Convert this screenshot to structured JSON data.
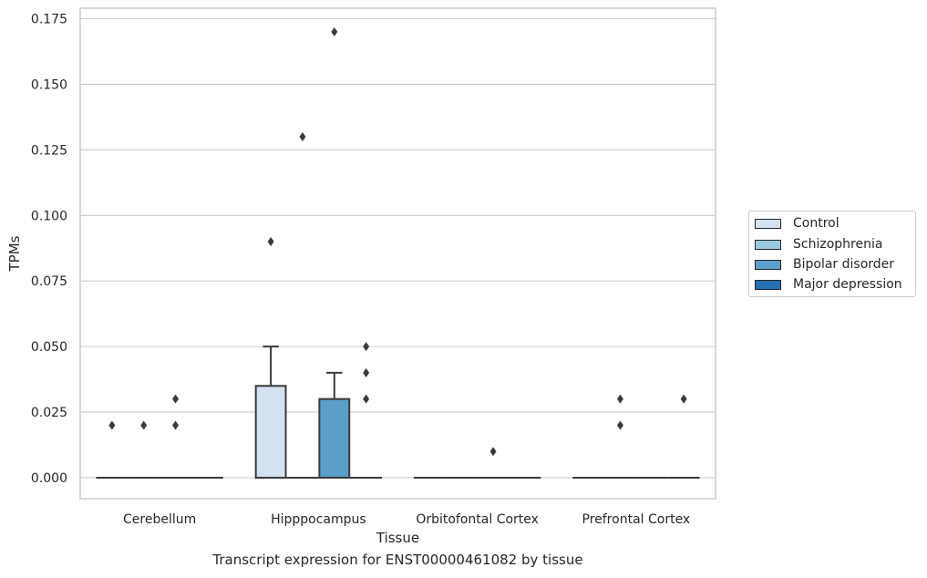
{
  "chart_data": {
    "type": "box",
    "xlabel": "Tissue",
    "ylabel": "TPMs",
    "caption": "Transcript expression for ENST00000461082 by tissue",
    "ylim": [
      -0.008,
      0.179
    ],
    "yticks": [
      "0.000",
      "0.025",
      "0.050",
      "0.075",
      "0.100",
      "0.125",
      "0.150",
      "0.175"
    ],
    "ytick_values": [
      0,
      0.025,
      0.05,
      0.075,
      0.1,
      0.125,
      0.15,
      0.175
    ],
    "grid": true,
    "legend_position": "right",
    "categories": [
      "Cerebellum",
      "Hipppocampus",
      "Orbitofontal Cortex",
      "Prefrontal Cortex"
    ],
    "series": [
      {
        "name": "Control",
        "color": "#d2e2f1",
        "boxes": [
          {
            "q1": 0,
            "median": 0,
            "q3": 0,
            "whislo": 0,
            "whishi": 0,
            "outliers": [
              0.02
            ]
          },
          {
            "q1": 0,
            "median": 0,
            "q3": 0.035,
            "whislo": 0,
            "whishi": 0.05,
            "outliers": [
              0.09
            ]
          },
          {
            "q1": 0,
            "median": 0,
            "q3": 0,
            "whislo": 0,
            "whishi": 0,
            "outliers": []
          },
          {
            "q1": 0,
            "median": 0,
            "q3": 0,
            "whislo": 0,
            "whishi": 0,
            "outliers": []
          }
        ]
      },
      {
        "name": "Schizophrenia",
        "color": "#9ac8e0",
        "boxes": [
          {
            "q1": 0,
            "median": 0,
            "q3": 0,
            "whislo": 0,
            "whishi": 0,
            "outliers": [
              0.02
            ]
          },
          {
            "q1": 0,
            "median": 0,
            "q3": 0,
            "whislo": 0,
            "whishi": 0,
            "outliers": [
              0.13
            ]
          },
          {
            "q1": 0,
            "median": 0,
            "q3": 0,
            "whislo": 0,
            "whishi": 0,
            "outliers": []
          },
          {
            "q1": 0,
            "median": 0,
            "q3": 0,
            "whislo": 0,
            "whishi": 0,
            "outliers": [
              0.02,
              0.03
            ]
          }
        ]
      },
      {
        "name": "Bipolar disorder",
        "color": "#5a9ec9",
        "boxes": [
          {
            "q1": 0,
            "median": 0,
            "q3": 0,
            "whislo": 0,
            "whishi": 0,
            "outliers": [
              0.02,
              0.03
            ]
          },
          {
            "q1": 0,
            "median": 0,
            "q3": 0.03,
            "whislo": 0,
            "whishi": 0.04,
            "outliers": [
              0.17
            ]
          },
          {
            "q1": 0,
            "median": 0,
            "q3": 0,
            "whislo": 0,
            "whishi": 0,
            "outliers": [
              0.01
            ]
          },
          {
            "q1": 0,
            "median": 0,
            "q3": 0,
            "whislo": 0,
            "whishi": 0,
            "outliers": []
          }
        ]
      },
      {
        "name": "Major depression",
        "color": "#2470b0",
        "boxes": [
          {
            "q1": 0,
            "median": 0,
            "q3": 0,
            "whislo": 0,
            "whishi": 0,
            "outliers": []
          },
          {
            "q1": 0,
            "median": 0,
            "q3": 0,
            "whislo": 0,
            "whishi": 0,
            "outliers": [
              0.03,
              0.04,
              0.05
            ]
          },
          {
            "q1": 0,
            "median": 0,
            "q3": 0,
            "whislo": 0,
            "whishi": 0,
            "outliers": []
          },
          {
            "q1": 0,
            "median": 0,
            "q3": 0,
            "whislo": 0,
            "whishi": 0,
            "outliers": [
              0.03
            ]
          }
        ]
      }
    ]
  }
}
